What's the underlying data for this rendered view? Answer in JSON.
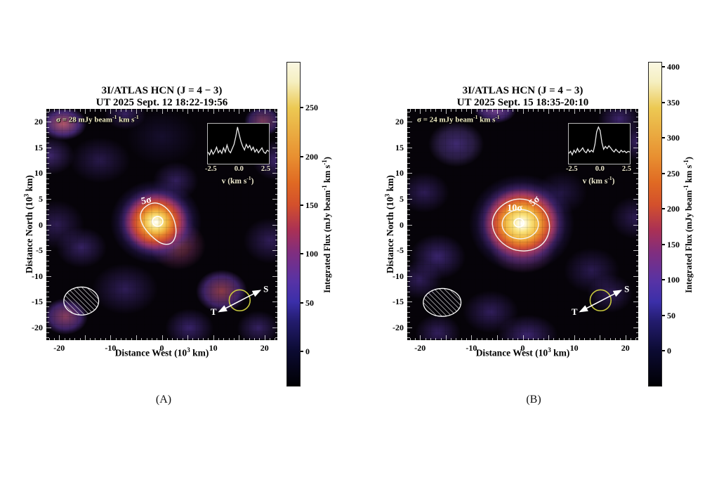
{
  "panels": [
    {
      "caption": "(A)",
      "title1": "3I/ATLAS HCN (J = 4 − 3)",
      "title2": "UT 2025 Sept. 12 18:22-19:56",
      "sigma_pre": "σ = 28 mJy beam",
      "sigma_mid": " km s",
      "contour_label_1": "5σ",
      "target_label": "T",
      "sun_label": "S"
    },
    {
      "caption": "(B)",
      "title1": "3I/ATLAS HCN (J = 4 − 3)",
      "title2": "UT 2025 Sept. 15 18:35-20:10",
      "sigma_pre": "σ = 24 mJy beam",
      "sigma_mid": " km s",
      "contour_label_1": "10σ",
      "contour_label_2": "5σ",
      "target_label": "T",
      "sun_label": "S"
    }
  ],
  "labels": {
    "sup_minus1": "-1",
    "sup_3": "3",
    "x_pre": "Distance West (10",
    "x_post": " km)",
    "y_pre": "Distance North (10",
    "y_post": " km)",
    "cbar_pre": "Integrated Flux (mJy beam",
    "cbar_mid": " km s",
    "cbar_post": ")",
    "v_pre": "v (km s",
    "v_post": ")",
    "inset_ticks": [
      "-2.5",
      "0.0",
      "2.5"
    ]
  },
  "chart_data": [
    {
      "type": "heatmap",
      "title": "3I/ATLAS HCN (J = 4 − 3)",
      "subtitle": "UT 2025 Sept. 12 18:22-19:56",
      "xlabel": "Distance West (10^3 km)",
      "ylabel": "Distance North (10^3 km)",
      "xlim": [
        -22.5,
        22.5
      ],
      "ylim": [
        -22.5,
        22.5
      ],
      "xtick_labels": [
        -20,
        -10,
        0,
        10,
        20
      ],
      "ytick_labels": [
        -20,
        -15,
        -10,
        -5,
        0,
        5,
        10,
        15,
        20
      ],
      "major_tick_step": 5,
      "minor_tick_step": 1,
      "noise_rms": "σ = 28 mJy beam-1 km s-1",
      "contour_levels": [
        "5σ"
      ],
      "peak_position": [
        0,
        0
      ],
      "beam": "hatched ellipse at lower-left, centered near (-16, -15)",
      "orientation_arrows": [
        "T",
        "S"
      ],
      "colorbar": {
        "label": "Integrated Flux (mJy beam-1 km s-1)",
        "ticks": [
          0,
          50,
          100,
          150,
          200,
          250
        ],
        "vmin": -36,
        "vmax": 297
      },
      "inset_spectrum": {
        "xlabel": "v (km s-1)",
        "xticks": [
          -2.5,
          0.0,
          2.5
        ],
        "values_norm": [
          0.28,
          0.2,
          0.34,
          0.22,
          0.3,
          0.42,
          0.26,
          0.33,
          0.24,
          0.4,
          0.28,
          0.48,
          0.32,
          0.26,
          0.38,
          0.5,
          0.72,
          1.0,
          0.78,
          0.58,
          0.44,
          0.34,
          0.5,
          0.4,
          0.47,
          0.33,
          0.42,
          0.28,
          0.36,
          0.26,
          0.33,
          0.4,
          0.28,
          0.24,
          0.33,
          0.3
        ]
      }
    },
    {
      "type": "heatmap",
      "title": "3I/ATLAS HCN (J = 4 − 3)",
      "subtitle": "UT 2025 Sept. 15 18:35-20:10",
      "xlabel": "Distance West (10^3 km)",
      "ylabel": "Distance North (10^3 km)",
      "xlim": [
        -22.5,
        22.5
      ],
      "ylim": [
        -22.5,
        22.5
      ],
      "xtick_labels": [
        -20,
        -10,
        0,
        10,
        20
      ],
      "ytick_labels": [
        -20,
        -15,
        -10,
        -5,
        0,
        5,
        10,
        15,
        20
      ],
      "major_tick_step": 5,
      "minor_tick_step": 1,
      "noise_rms": "σ = 24 mJy beam-1 km s-1",
      "contour_levels": [
        "10σ",
        "5σ"
      ],
      "peak_position": [
        0,
        0
      ],
      "beam": "hatched ellipse at lower-left, centered near (-16, -15)",
      "orientation_arrows": [
        "T",
        "S"
      ],
      "colorbar": {
        "label": "Integrated Flux (mJy beam-1 km s-1)",
        "ticks": [
          0,
          50,
          100,
          150,
          200,
          250,
          300,
          350,
          400
        ],
        "vmin": -50,
        "vmax": 407
      },
      "inset_spectrum": {
        "xlabel": "v (km s-1)",
        "xticks": [
          -2.5,
          0.0,
          2.5
        ],
        "values_norm": [
          0.24,
          0.3,
          0.2,
          0.33,
          0.26,
          0.38,
          0.28,
          0.33,
          0.4,
          0.3,
          0.26,
          0.36,
          0.28,
          0.33,
          0.28,
          0.5,
          0.86,
          1.0,
          0.9,
          0.55,
          0.36,
          0.44,
          0.38,
          0.46,
          0.4,
          0.33,
          0.28,
          0.36,
          0.3,
          0.26,
          0.33,
          0.28,
          0.31,
          0.26,
          0.3,
          0.28
        ]
      }
    }
  ]
}
